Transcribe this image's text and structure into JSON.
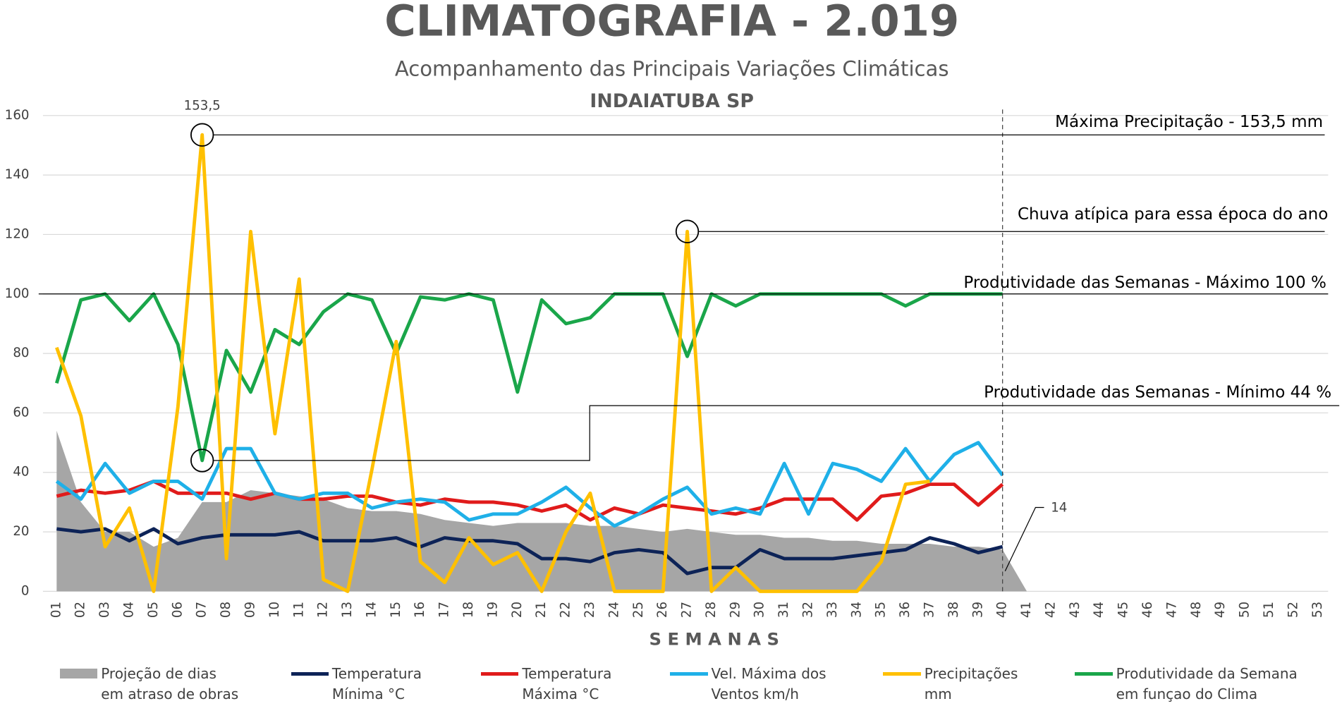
{
  "chart_data": {
    "type": "line",
    "title": "CLIMATOGRAFIA - 2.019",
    "subtitle": "Acompanhamento das Principais Variações Climáticas",
    "location": "INDAIATUBA SP",
    "xlabel": "SEMANAS",
    "categories": [
      "01",
      "02",
      "03",
      "04",
      "05",
      "06",
      "07",
      "08",
      "09",
      "10",
      "11",
      "12",
      "13",
      "14",
      "15",
      "16",
      "17",
      "18",
      "19",
      "20",
      "21",
      "22",
      "23",
      "24",
      "25",
      "26",
      "27",
      "28",
      "29",
      "30",
      "31",
      "32",
      "33",
      "34",
      "35",
      "36",
      "37",
      "38",
      "39",
      "40",
      "41",
      "42",
      "43",
      "44",
      "45",
      "46",
      "47",
      "48",
      "49",
      "50",
      "51",
      "52",
      "53"
    ],
    "ylim": [
      0,
      160
    ],
    "yticks": [
      0,
      20,
      40,
      60,
      80,
      100,
      120,
      140,
      160
    ],
    "grid": true,
    "series": [
      {
        "name": "Projeção de dias\nem atraso de obras",
        "kind": "area",
        "color": "#a6a6a6",
        "values": [
          54,
          30,
          20,
          20,
          15,
          18,
          30,
          30,
          34,
          33,
          32,
          31,
          28,
          27,
          27,
          26,
          24,
          23,
          22,
          23,
          23,
          23,
          22,
          22,
          21,
          20,
          21,
          20,
          19,
          19,
          18,
          18,
          17,
          17,
          16,
          16,
          16,
          15,
          15,
          14,
          0,
          null,
          null,
          null,
          null,
          null,
          null,
          null,
          null,
          null,
          null,
          null,
          null
        ]
      },
      {
        "name": "Temperatura\nMínima °C",
        "color": "#0d2357",
        "values": [
          21,
          20,
          21,
          17,
          21,
          16,
          18,
          19,
          19,
          19,
          20,
          17,
          17,
          17,
          18,
          15,
          18,
          17,
          17,
          16,
          11,
          11,
          10,
          13,
          14,
          13,
          6,
          8,
          8,
          14,
          11,
          11,
          11,
          12,
          13,
          14,
          18,
          16,
          13,
          15,
          null,
          null,
          null,
          null,
          null,
          null,
          null,
          null,
          null,
          null,
          null,
          null,
          null
        ]
      },
      {
        "name": "Temperatura\nMáxima °C",
        "color": "#e01b1b",
        "values": [
          32,
          34,
          33,
          34,
          37,
          33,
          33,
          33,
          31,
          33,
          31,
          31,
          32,
          32,
          30,
          29,
          31,
          30,
          30,
          29,
          27,
          29,
          24,
          28,
          26,
          29,
          28,
          27,
          26,
          28,
          31,
          31,
          31,
          24,
          32,
          33,
          36,
          36,
          29,
          36,
          null,
          null,
          null,
          null,
          null,
          null,
          null,
          null,
          null,
          null,
          null,
          null,
          null
        ]
      },
      {
        "name": "Vel. Máxima dos\nVentos km/h",
        "color": "#1fb0e8",
        "values": [
          37,
          31,
          43,
          33,
          37,
          37,
          31,
          48,
          48,
          33,
          31,
          33,
          33,
          28,
          30,
          31,
          30,
          24,
          26,
          26,
          30,
          35,
          28,
          22,
          26,
          31,
          35,
          26,
          28,
          26,
          43,
          26,
          43,
          41,
          37,
          48,
          37,
          46,
          50,
          39,
          null,
          null,
          null,
          null,
          null,
          null,
          null,
          null,
          null,
          null,
          null,
          null,
          null
        ]
      },
      {
        "name": "Precipitações\nmm",
        "color": "#ffc000",
        "values": [
          82,
          59,
          15,
          28,
          0,
          62,
          153.5,
          11,
          121,
          53,
          105,
          4,
          0,
          41,
          84,
          10,
          3,
          18,
          9,
          13,
          0,
          20,
          33,
          0,
          0,
          0,
          121,
          0,
          8,
          0,
          0,
          0,
          0,
          0,
          10,
          36,
          37,
          null,
          null,
          null,
          null,
          null,
          null,
          null,
          null,
          null,
          null,
          null,
          null,
          null,
          null,
          null,
          null
        ]
      },
      {
        "name": "Produtividade da Semana\nem funçao do Clima",
        "color": "#1aa64a",
        "values": [
          70,
          98,
          100,
          91,
          100,
          83,
          44,
          81,
          67,
          88,
          83,
          94,
          100,
          98,
          80,
          99,
          98,
          100,
          98,
          67,
          98,
          90,
          92,
          100,
          100,
          100,
          79,
          100,
          96,
          100,
          100,
          100,
          100,
          100,
          100,
          96,
          100,
          100,
          100,
          100,
          null,
          null,
          null,
          null,
          null,
          null,
          null,
          null,
          null,
          null,
          null,
          null,
          null
        ]
      }
    ],
    "annotations": [
      "153,5",
      "Máxima Precipitação - 153,5 mm",
      "Chuva atípica para essa época do ano",
      "Produtividade das Semanas - Máximo 100 %",
      "Produtividade das Semanas - Mínimo 44 %",
      "14"
    ]
  }
}
